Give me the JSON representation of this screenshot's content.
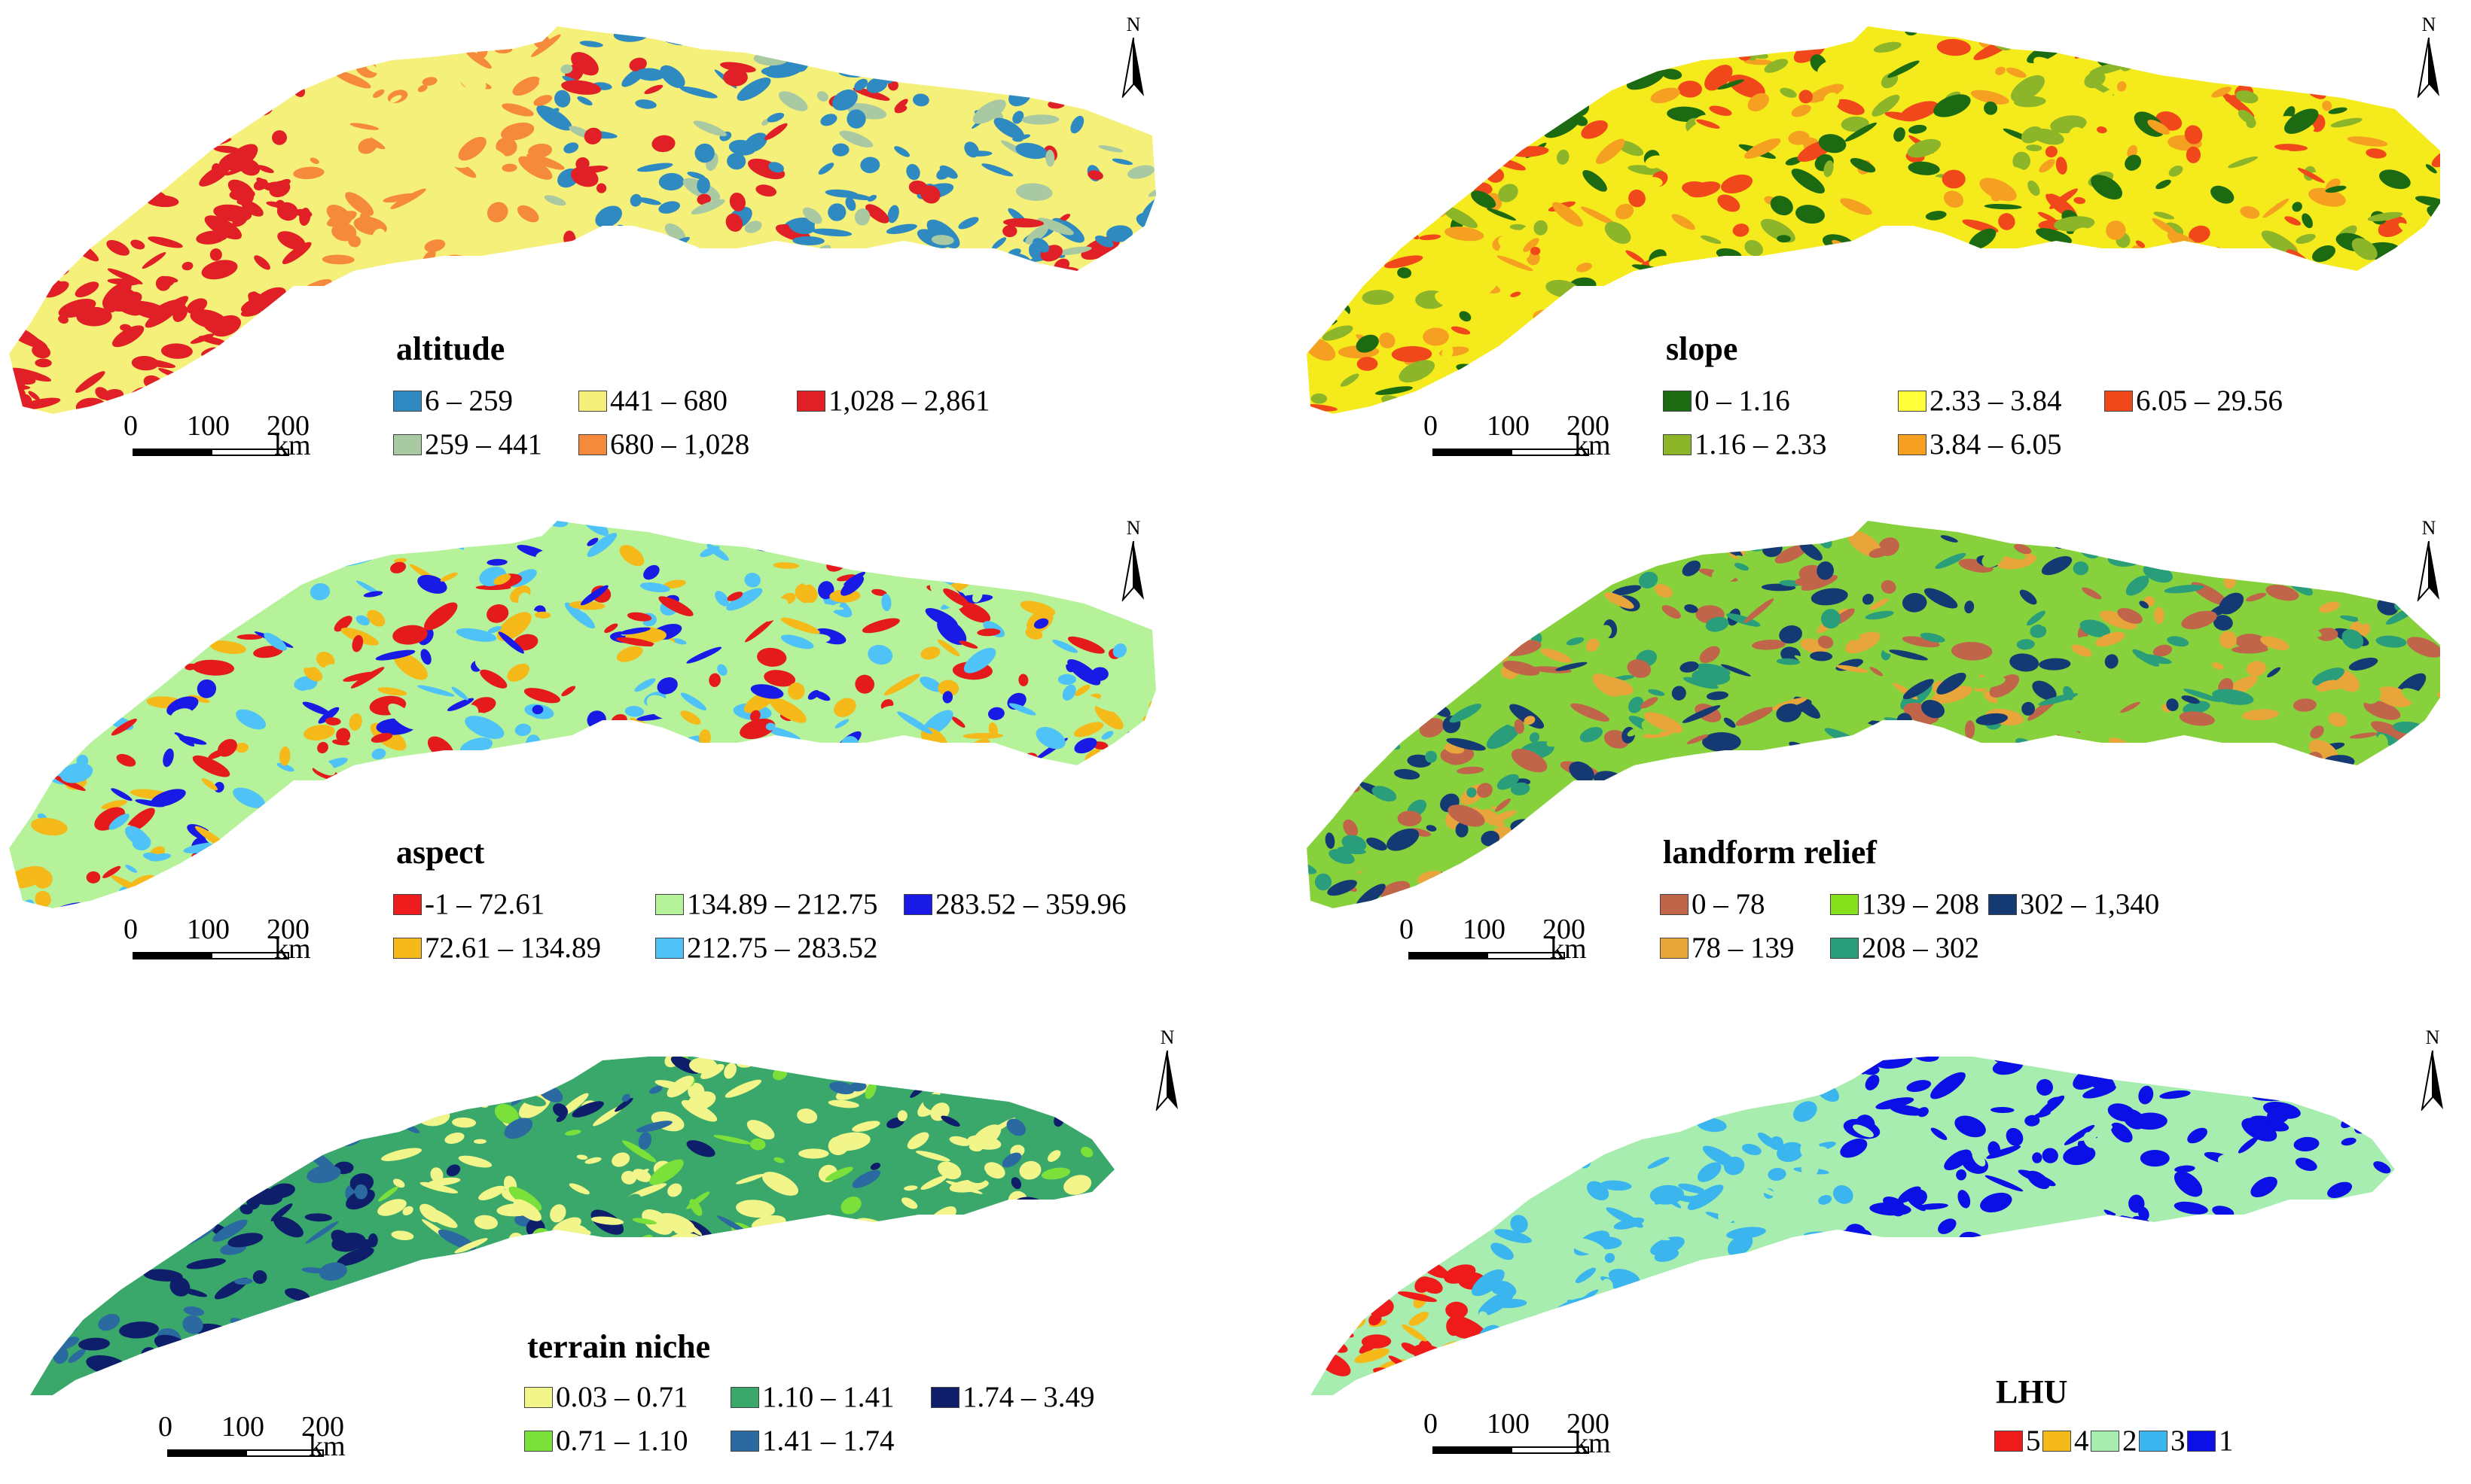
{
  "panels": [
    {
      "id": "altitude",
      "title": "altitude",
      "north_label": "N",
      "map_colors": [
        "#2e8ac1",
        "#a8c9a2",
        "#f5f07a",
        "#f58a3c",
        "#e11f26"
      ],
      "legend": [
        {
          "label": "6 – 259",
          "color": "#2e8ac1"
        },
        {
          "label": "441 – 680",
          "color": "#f5f07a"
        },
        {
          "label": "1,028 – 2,861",
          "color": "#e11f26"
        },
        {
          "label": "259 – 441",
          "color": "#a8c9a2"
        },
        {
          "label": "680 – 1,028",
          "color": "#f58a3c"
        }
      ],
      "scale": {
        "ticks": [
          "0",
          "100",
          "200"
        ],
        "unit": "km"
      }
    },
    {
      "id": "slope",
      "title": "slope",
      "north_label": "N",
      "map_colors": [
        "#1c6b13",
        "#8db52a",
        "#f5ea1c",
        "#f5a021",
        "#f1481b"
      ],
      "legend": [
        {
          "label": "0 – 1.16",
          "color": "#1c6b13"
        },
        {
          "label": "2.33 – 3.84",
          "color": "#ffff3a"
        },
        {
          "label": "6.05 – 29.56",
          "color": "#f1481b"
        },
        {
          "label": "1.16 – 2.33",
          "color": "#8db52a"
        },
        {
          "label": "3.84 – 6.05",
          "color": "#f5a021"
        }
      ],
      "scale": {
        "ticks": [
          "0",
          "100",
          "200"
        ],
        "unit": "km"
      }
    },
    {
      "id": "aspect",
      "title": "aspect",
      "north_label": "N",
      "map_colors": [
        "#e41a1c",
        "#f5b91a",
        "#b5f29a",
        "#4fc3f7",
        "#1a1ae6"
      ],
      "legend": [
        {
          "label": "-1 – 72.61",
          "color": "#ee1c1c"
        },
        {
          "label": "134.89 – 212.75",
          "color": "#b5f29a"
        },
        {
          "label": "283.52 – 359.96",
          "color": "#1a1ae6"
        },
        {
          "label": "72.61 – 134.89",
          "color": "#f5b91a"
        },
        {
          "label": "212.75 – 283.52",
          "color": "#4fc3f7"
        }
      ],
      "scale": {
        "ticks": [
          "0",
          "100",
          "200"
        ],
        "unit": "km"
      }
    },
    {
      "id": "landform-relief",
      "title": "landform relief",
      "north_label": "N",
      "map_colors": [
        "#c0654a",
        "#e8a63a",
        "#86d13c",
        "#2a9e7a",
        "#153a73"
      ],
      "legend": [
        {
          "label": "0 – 78",
          "color": "#c0654a"
        },
        {
          "label": "139 – 208",
          "color": "#86e11c"
        },
        {
          "label": "302 – 1,340",
          "color": "#153a73"
        },
        {
          "label": "78 – 139",
          "color": "#e8a63a"
        },
        {
          "label": "208 – 302",
          "color": "#2a9e7a"
        }
      ],
      "scale": {
        "ticks": [
          "0",
          "100",
          "200"
        ],
        "unit": "km"
      }
    },
    {
      "id": "terrain-niche",
      "title": "terrain niche",
      "north_label": "N",
      "map_colors": [
        "#f2f58a",
        "#7be03a",
        "#3aa86a",
        "#2a6aa0",
        "#0f1e6b"
      ],
      "legend": [
        {
          "label": "0.03 – 0.71",
          "color": "#f2f58a"
        },
        {
          "label": "1.10 – 1.41",
          "color": "#3aa86a"
        },
        {
          "label": "1.74 – 3.49",
          "color": "#0f1e6b"
        },
        {
          "label": "0.71 – 1.10",
          "color": "#7be03a"
        },
        {
          "label": "1.41 – 1.74",
          "color": "#2a6aa0"
        }
      ],
      "scale": {
        "ticks": [
          "0",
          "100",
          "200"
        ],
        "unit": "km"
      }
    },
    {
      "id": "lhu",
      "title": "LHU",
      "north_label": "N",
      "map_colors": [
        "#ef1a1a",
        "#f5b91a",
        "#a8edb0",
        "#3ab5ee",
        "#0a10e6"
      ],
      "legend": [
        {
          "label": "5",
          "color": "#ef1a1a"
        },
        {
          "label": "4",
          "color": "#f5b91a"
        },
        {
          "label": "2",
          "color": "#a8edb0"
        },
        {
          "label": "3",
          "color": "#3ab5ee"
        },
        {
          "label": "1",
          "color": "#0a10e6"
        }
      ],
      "scale": {
        "ticks": [
          "0",
          "100",
          "200"
        ],
        "unit": "km"
      }
    }
  ]
}
